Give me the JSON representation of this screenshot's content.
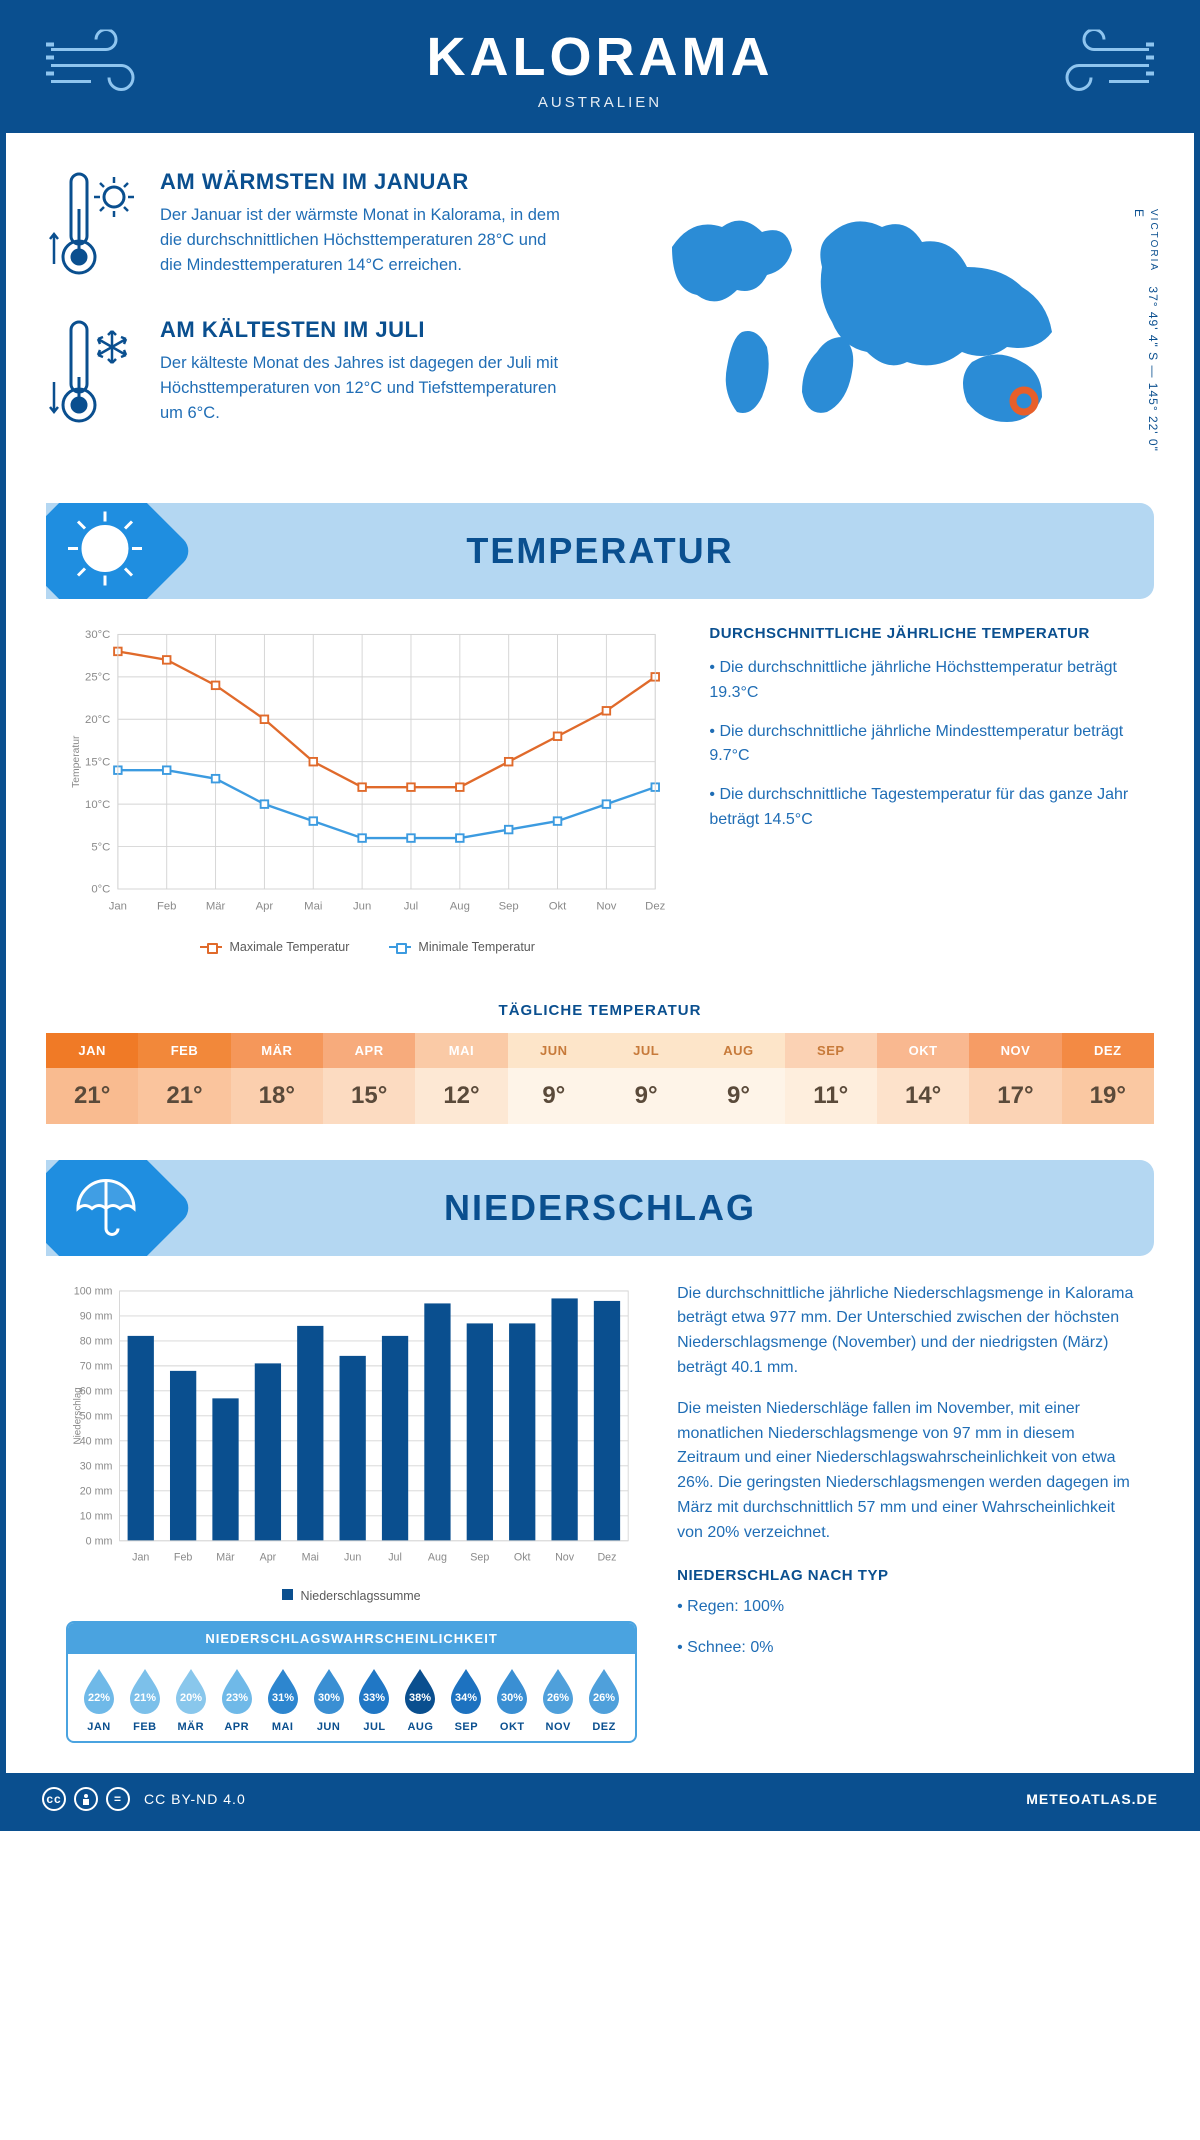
{
  "colors": {
    "brand": "#0a4f8f",
    "bluelt": "#1f6db5",
    "secbg": "#b4d7f2",
    "secicon": "#1f8ee0",
    "maxline": "#e06a2b",
    "minline": "#3c9be0",
    "bar": "#0a4f8f",
    "grid": "#d4d4d4",
    "axistext": "#8a8a8a",
    "white": "#ffffff",
    "marker": "#e85f2a"
  },
  "header": {
    "title": "KALORAMA",
    "subtitle": "AUSTRALIEN"
  },
  "coords": {
    "region": "VICTORIA",
    "lat": "37° 49' 4\" S",
    "lon": "145° 22' 0\" E"
  },
  "facts": {
    "warm": {
      "title": "AM WÄRMSTEN IM JANUAR",
      "text": "Der Januar ist der wärmste Monat in Kalorama, in dem die durchschnittlichen Höchsttemperaturen 28°C und die Mindesttemperaturen 14°C erreichen."
    },
    "cold": {
      "title": "AM KÄLTESTEN IM JULI",
      "text": "Der kälteste Monat des Jahres ist dagegen der Juli mit Höchsttemperaturen von 12°C und Tiefsttemperaturen um 6°C."
    }
  },
  "temp_section": {
    "title": "TEMPERATUR"
  },
  "temp_chart": {
    "ylabel": "Temperatur",
    "months": [
      "Jan",
      "Feb",
      "Mär",
      "Apr",
      "Mai",
      "Jun",
      "Jul",
      "Aug",
      "Sep",
      "Okt",
      "Nov",
      "Dez"
    ],
    "max": [
      28,
      27,
      24,
      20,
      15,
      12,
      12,
      12,
      15,
      18,
      21,
      25
    ],
    "min": [
      14,
      14,
      13,
      10,
      8,
      6,
      6,
      6,
      7,
      8,
      10,
      12
    ],
    "ylim": [
      0,
      30
    ],
    "ystep": 5,
    "legend_max": "Maximale Temperatur",
    "legend_min": "Minimale Temperatur",
    "max_color": "#e06a2b",
    "min_color": "#3c9be0"
  },
  "temp_info": {
    "title": "DURCHSCHNITTLICHE JÄHRLICHE TEMPERATUR",
    "b1": "• Die durchschnittliche jährliche Höchsttemperatur beträgt 19.3°C",
    "b2": "• Die durchschnittliche jährliche Mindesttemperatur beträgt 9.7°C",
    "b3": "• Die durchschnittliche Tagestemperatur für das ganze Jahr beträgt 14.5°C"
  },
  "daily": {
    "title": "TÄGLICHE TEMPERATUR",
    "months": [
      "JAN",
      "FEB",
      "MÄR",
      "APR",
      "MAI",
      "JUN",
      "JUL",
      "AUG",
      "SEP",
      "OKT",
      "NOV",
      "DEZ"
    ],
    "values": [
      "21°",
      "21°",
      "18°",
      "15°",
      "12°",
      "9°",
      "9°",
      "9°",
      "11°",
      "14°",
      "17°",
      "19°"
    ],
    "head_colors": [
      "#f07a26",
      "#f2883a",
      "#f5975a",
      "#f7ab7c",
      "#facaa6",
      "#fde5c9",
      "#fde5c9",
      "#fde5c9",
      "#fbd2b4",
      "#f9b890",
      "#f69c65",
      "#f38a44"
    ],
    "val_colors": [
      "#f9bb90",
      "#fac49d",
      "#fbcfae",
      "#fcdbc1",
      "#fde8d4",
      "#fef4e8",
      "#fef4e8",
      "#fef4e8",
      "#feeedd",
      "#fde2cb",
      "#fbd3b5",
      "#fac8a2"
    ],
    "val_text": "#5a4a3a"
  },
  "precip_section": {
    "title": "NIEDERSCHLAG"
  },
  "precip_chart": {
    "ylabel": "Niederschlag",
    "months": [
      "Jan",
      "Feb",
      "Mär",
      "Apr",
      "Mai",
      "Jun",
      "Jul",
      "Aug",
      "Sep",
      "Okt",
      "Nov",
      "Dez"
    ],
    "values": [
      82,
      68,
      57,
      71,
      86,
      74,
      82,
      95,
      87,
      87,
      97,
      96
    ],
    "ylim": [
      0,
      100
    ],
    "ystep": 10,
    "legend": "Niederschlagssumme",
    "bar_color": "#0a4f8f"
  },
  "precip_text": {
    "p1": "Die durchschnittliche jährliche Niederschlagsmenge in Kalorama beträgt etwa 977 mm. Der Unterschied zwischen der höchsten Niederschlagsmenge (November) und der niedrigsten (März) beträgt 40.1 mm.",
    "p2": "Die meisten Niederschläge fallen im November, mit einer monatlichen Niederschlagsmenge von 97 mm in diesem Zeitraum und einer Niederschlagswahrscheinlichkeit von etwa 26%. Die geringsten Niederschlagsmengen werden dagegen im März mit durchschnittlich 57 mm und einer Wahrscheinlichkeit von 20% verzeichnet.",
    "type_title": "NIEDERSCHLAG NACH TYP",
    "type_rain": "• Regen: 100%",
    "type_snow": "• Schnee: 0%"
  },
  "prob": {
    "title": "NIEDERSCHLAGSWAHRSCHEINLICHKEIT",
    "months": [
      "JAN",
      "FEB",
      "MÄR",
      "APR",
      "MAI",
      "JUN",
      "JUL",
      "AUG",
      "SEP",
      "OKT",
      "NOV",
      "DEZ"
    ],
    "values": [
      "22%",
      "21%",
      "20%",
      "23%",
      "31%",
      "30%",
      "33%",
      "38%",
      "34%",
      "30%",
      "26%",
      "26%"
    ],
    "colors": [
      "#6fb9e8",
      "#7cc0ea",
      "#89c7ec",
      "#6fb9e8",
      "#2d86cf",
      "#3a8fd3",
      "#2077c5",
      "#0a4f8f",
      "#1d72c0",
      "#3a8fd3",
      "#4fa0db",
      "#4fa0db"
    ]
  },
  "footer": {
    "license": "CC BY-ND 4.0",
    "site": "METEOATLAS.DE"
  }
}
